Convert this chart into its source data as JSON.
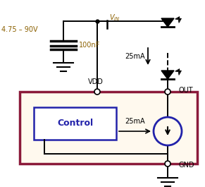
{
  "bg_color": "#ffffff",
  "ic_box_color": "#8B1A3A",
  "ic_fill_color": "#FFF9EE",
  "control_box_color": "#2222AA",
  "control_fill_color": "#ffffff",
  "text_color_brown": "#8B6000",
  "text_color_black": "#000000",
  "voltage_label": "4.75 – 90V",
  "cap_label": "100nF",
  "current_label_top": "25mA",
  "current_label_mid": "25mA",
  "vdd_label": "VDD",
  "out_label": "OUT",
  "gnd_label": "GND",
  "control_label": "Control"
}
